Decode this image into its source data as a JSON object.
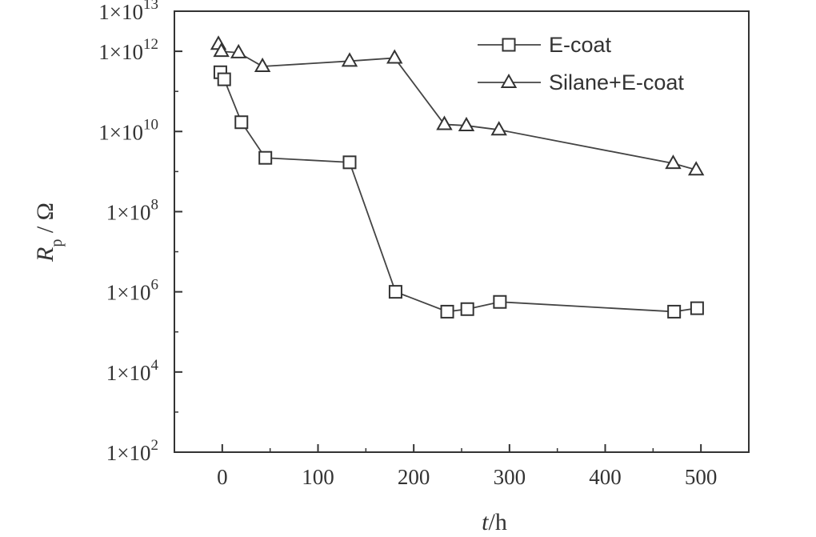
{
  "chart_data": {
    "type": "scatter",
    "xlabel": "t/h",
    "ylabel": "Rp / Ω",
    "xlim": [
      -50,
      550
    ],
    "ylim": [
      100,
      10000000000000
    ],
    "y_scale": "log",
    "x_ticks": [
      0,
      100,
      200,
      300,
      400,
      500
    ],
    "x_tick_labels": [
      "0",
      "100",
      "200",
      "300",
      "400",
      "500"
    ],
    "y_ticks": [
      100,
      10000,
      1000000,
      100000000,
      10000000000,
      1000000000000,
      10000000000000
    ],
    "y_tick_labels": [
      {
        "base": "1×10",
        "exp": "2"
      },
      {
        "base": "1×10",
        "exp": "4"
      },
      {
        "base": "1×10",
        "exp": "6"
      },
      {
        "base": "1×10",
        "exp": "8"
      },
      {
        "base": "1×10",
        "exp": "10"
      },
      {
        "base": "1×10",
        "exp": "12"
      },
      {
        "base": "1×10",
        "exp": "13"
      }
    ],
    "grid": false,
    "legend_position": "top-right",
    "series": [
      {
        "name": "E-coat",
        "marker": "square",
        "x": [
          -2,
          2,
          20,
          45,
          133,
          181,
          235,
          256,
          290,
          472,
          496
        ],
        "y": [
          300000000000,
          200000000000,
          17000000000,
          2200000000,
          1700000000,
          1000000,
          320000,
          370000,
          560000,
          320000,
          390000
        ]
      },
      {
        "name": "Silane+E-coat",
        "marker": "triangle",
        "x": [
          -4,
          -1,
          17,
          42,
          133,
          180,
          232,
          255,
          289,
          471,
          495
        ],
        "y": [
          1500000000000,
          1000000000000,
          920000000000,
          420000000000,
          570000000000,
          680000000000,
          15000000000,
          14000000000,
          11000000000,
          1600000000,
          1100000000
        ]
      }
    ]
  }
}
